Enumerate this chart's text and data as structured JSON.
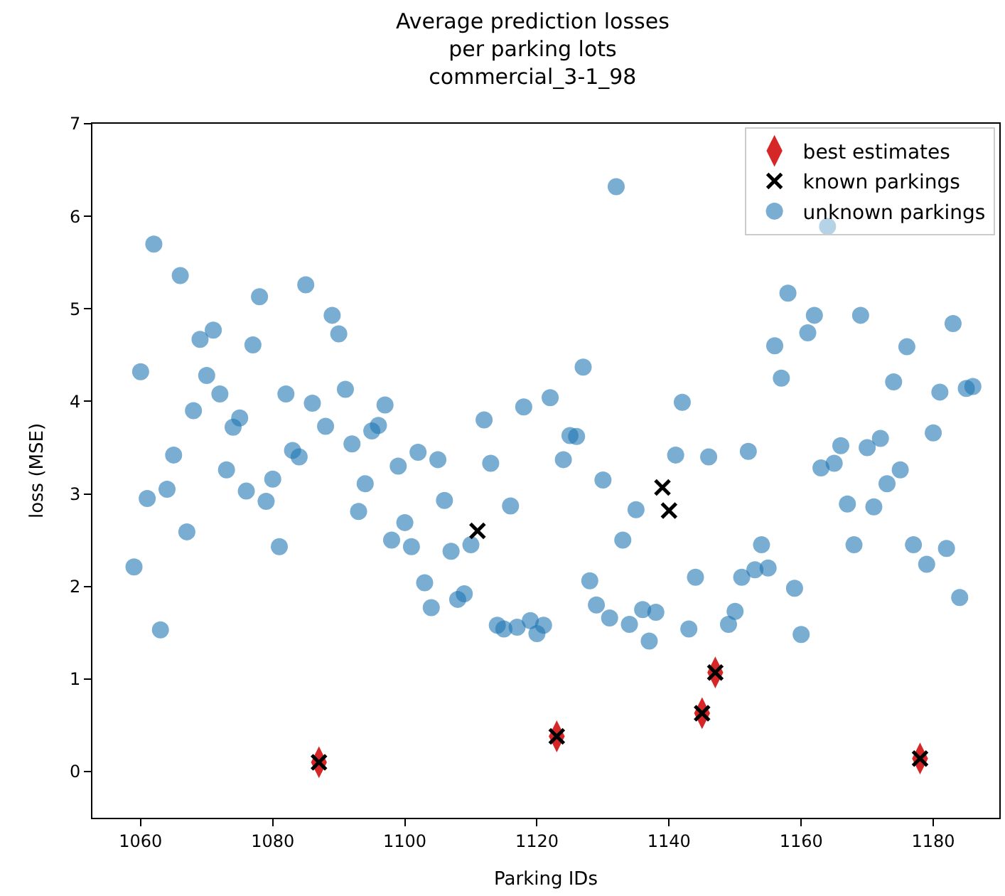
{
  "chart_data": {
    "type": "scatter",
    "title": "Average prediction losses\nper parking lots\ncommercial_3-1_98",
    "xlabel": "Parking IDs",
    "ylabel": "loss (MSE)",
    "xlim": [
      1052.7,
      1190
    ],
    "xticks": [
      1060,
      1080,
      1100,
      1120,
      1140,
      1160,
      1180
    ],
    "ylim": [
      -0.5,
      7
    ],
    "yticks": [
      0,
      1,
      2,
      3,
      4,
      5,
      6,
      7
    ],
    "legend": "top right",
    "series": [
      {
        "name": "best estimates",
        "color": "#d62728",
        "marker": "diamond",
        "x": [
          1087,
          1123,
          1145,
          1147,
          1178
        ],
        "values": [
          0.1,
          0.38,
          0.63,
          1.07,
          0.14
        ]
      },
      {
        "name": "known parkings",
        "color": "#000000",
        "marker": "cross",
        "x": [
          1087,
          1111,
          1123,
          1139,
          1140,
          1145,
          1147,
          1178
        ],
        "values": [
          0.1,
          2.6,
          0.38,
          3.07,
          2.82,
          0.63,
          1.07,
          0.14
        ]
      },
      {
        "name": "unknown parkings",
        "color": "#1f77b4",
        "marker": "circle",
        "x": [
          1059,
          1060,
          1061,
          1062,
          1063,
          1064,
          1065,
          1066,
          1067,
          1068,
          1069,
          1070,
          1071,
          1072,
          1073,
          1074,
          1075,
          1076,
          1077,
          1078,
          1079,
          1080,
          1081,
          1082,
          1083,
          1084,
          1085,
          1086,
          1088,
          1089,
          1090,
          1091,
          1092,
          1093,
          1094,
          1095,
          1096,
          1097,
          1098,
          1099,
          1100,
          1101,
          1102,
          1103,
          1104,
          1105,
          1106,
          1107,
          1108,
          1109,
          1110,
          1112,
          1113,
          1114,
          1115,
          1116,
          1117,
          1118,
          1119,
          1120,
          1121,
          1122,
          1124,
          1125,
          1126,
          1127,
          1128,
          1129,
          1130,
          1131,
          1132,
          1133,
          1134,
          1135,
          1136,
          1137,
          1138,
          1141,
          1142,
          1143,
          1144,
          1146,
          1149,
          1150,
          1151,
          1152,
          1153,
          1154,
          1155,
          1156,
          1157,
          1158,
          1159,
          1160,
          1161,
          1162,
          1163,
          1164,
          1165,
          1166,
          1167,
          1168,
          1169,
          1170,
          1171,
          1172,
          1173,
          1174,
          1175,
          1176,
          1177,
          1179,
          1180,
          1181,
          1182,
          1183,
          1184,
          1185,
          1186
        ],
        "values": [
          2.21,
          4.32,
          2.95,
          5.7,
          1.53,
          3.05,
          3.42,
          5.36,
          2.59,
          3.9,
          4.67,
          4.28,
          4.77,
          4.08,
          3.26,
          3.72,
          3.82,
          3.03,
          4.61,
          5.13,
          2.92,
          3.16,
          2.43,
          4.08,
          3.47,
          3.4,
          5.26,
          3.98,
          3.73,
          4.93,
          4.73,
          4.13,
          3.54,
          2.81,
          3.11,
          3.68,
          3.74,
          3.96,
          2.5,
          3.3,
          2.69,
          2.43,
          3.45,
          2.04,
          1.77,
          3.37,
          2.93,
          2.38,
          1.86,
          1.92,
          2.45,
          3.8,
          3.33,
          1.58,
          1.54,
          2.87,
          1.56,
          3.94,
          1.63,
          1.49,
          1.58,
          4.04,
          3.37,
          3.63,
          3.62,
          4.37,
          2.06,
          1.8,
          3.15,
          1.66,
          6.32,
          2.5,
          1.59,
          2.83,
          1.75,
          1.41,
          1.72,
          3.42,
          3.99,
          1.54,
          2.1,
          3.4,
          1.59,
          1.73,
          2.1,
          3.46,
          2.18,
          2.45,
          2.2,
          4.6,
          4.25,
          5.17,
          1.98,
          1.48,
          4.74,
          4.93,
          3.28,
          5.89,
          3.33,
          3.52,
          2.89,
          2.45,
          4.93,
          3.5,
          2.86,
          3.6,
          3.11,
          4.21,
          3.26,
          4.59,
          2.45,
          2.24,
          3.66,
          4.1,
          2.41,
          4.84,
          1.88,
          4.14,
          4.16
        ]
      }
    ]
  }
}
